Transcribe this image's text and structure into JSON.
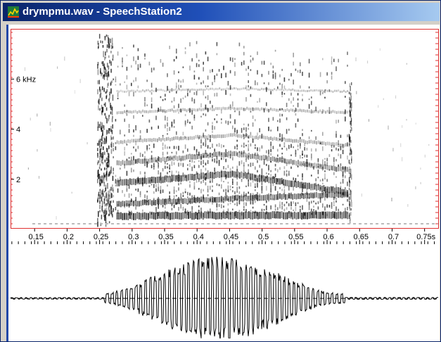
{
  "window": {
    "title": "drympmu.wav - SpeechStation2"
  },
  "spectrogram": {
    "freq_labels": [
      "6 kHz",
      "4",
      "2"
    ],
    "freq_values_khz": [
      6,
      4,
      2
    ]
  },
  "time_axis": {
    "labels": [
      "0.15",
      "0.2",
      "0.25",
      "0.3",
      "0.35",
      "0.4",
      "0.45",
      "0.5",
      "0.55",
      "0.6",
      "0.65",
      "0.7",
      "0.75s"
    ],
    "values": [
      0.15,
      0.2,
      0.25,
      0.3,
      0.35,
      0.4,
      0.45,
      0.5,
      0.55,
      0.6,
      0.65,
      0.7,
      0.75
    ],
    "range": [
      0.113,
      0.772
    ]
  },
  "colors": {
    "title_start": "#0a246a",
    "title_end": "#a6caf0",
    "panel_border": "#e03030",
    "client_accent": "#2248a8"
  },
  "icons": {
    "app": "spectrogram-app-icon"
  }
}
